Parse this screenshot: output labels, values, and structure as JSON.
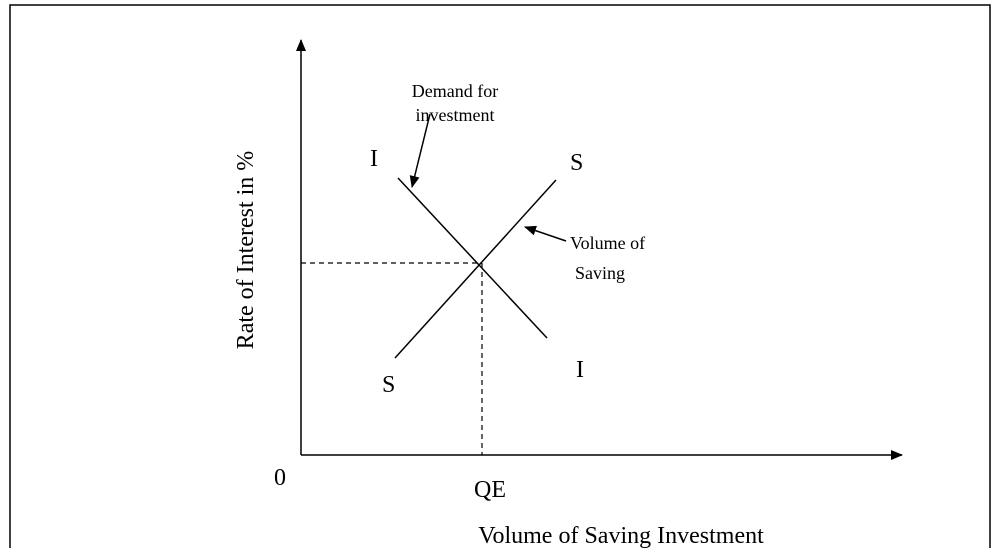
{
  "diagram": {
    "y_axis_label": "Rate of Interest in %",
    "x_axis_label": "Volume of Saving Investment",
    "origin_label": "0",
    "equilibrium_label": "QE",
    "investment_curve": {
      "label_top": "I",
      "label_bottom": "I",
      "annotation": [
        "Demand for",
        "investment"
      ]
    },
    "saving_curve": {
      "label_top": "S",
      "label_bottom": "S",
      "annotation": [
        "Volume of",
        "Saving"
      ]
    }
  }
}
